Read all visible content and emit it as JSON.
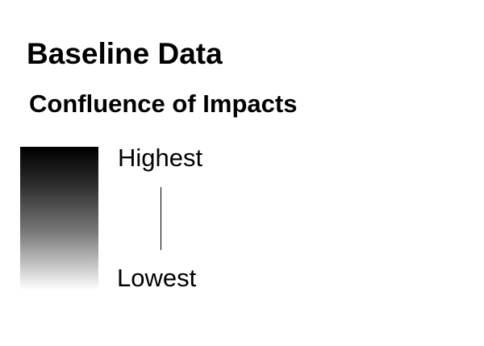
{
  "title": "Baseline Data",
  "subtitle": "Confluence of Impacts",
  "legend": {
    "high_label": "Highest",
    "low_label": "Lowest",
    "gradient_colors": [
      "#000000",
      "#ffffff"
    ]
  }
}
